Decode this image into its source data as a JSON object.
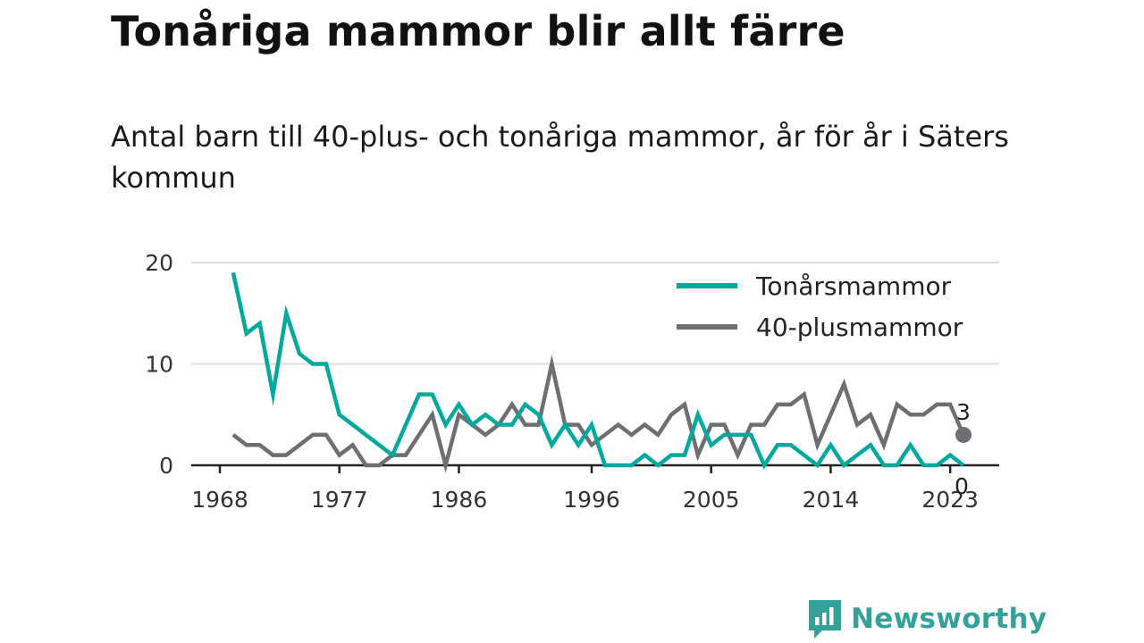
{
  "header": {
    "title": "Tonåriga mammor blir allt färre",
    "subtitle": "Antal barn till 40-plus- och tonåriga mammor, år för år i Säters kommun"
  },
  "brand": {
    "name": "Newsworthy",
    "icon": "bar-chart-speech-bubble-icon",
    "color": "#33a29a"
  },
  "chart_data": {
    "type": "line",
    "x": [
      1969,
      1970,
      1971,
      1972,
      1973,
      1974,
      1975,
      1976,
      1977,
      1978,
      1979,
      1980,
      1981,
      1982,
      1983,
      1984,
      1985,
      1986,
      1987,
      1988,
      1989,
      1990,
      1991,
      1992,
      1993,
      1994,
      1995,
      1996,
      1997,
      1998,
      1999,
      2000,
      2001,
      2002,
      2003,
      2004,
      2005,
      2006,
      2007,
      2008,
      2009,
      2010,
      2011,
      2012,
      2013,
      2014,
      2015,
      2016,
      2017,
      2018,
      2019,
      2020,
      2021,
      2022,
      2023,
      2024
    ],
    "series": [
      {
        "name": "Tonårsmammor",
        "color": "#00a99d",
        "values": [
          19,
          13,
          14,
          7,
          15,
          11,
          10,
          10,
          5,
          4,
          3,
          2,
          1,
          4,
          7,
          7,
          4,
          6,
          4,
          5,
          4,
          4,
          6,
          5,
          2,
          4,
          2,
          4,
          0,
          0,
          0,
          1,
          0,
          1,
          1,
          5,
          2,
          3,
          3,
          3,
          0,
          2,
          2,
          1,
          0,
          2,
          0,
          1,
          2,
          0,
          0,
          2,
          0,
          0,
          1,
          0
        ]
      },
      {
        "name": "40-plusmammor",
        "color": "#6e6e73",
        "values": [
          3,
          2,
          2,
          1,
          1,
          2,
          3,
          3,
          1,
          2,
          0,
          0,
          1,
          1,
          3,
          5,
          0,
          5,
          4,
          3,
          4,
          6,
          4,
          4,
          10,
          4,
          4,
          2,
          3,
          4,
          3,
          4,
          3,
          5,
          6,
          1,
          4,
          4,
          1,
          4,
          4,
          6,
          6,
          7,
          2,
          5,
          8,
          4,
          5,
          2,
          6,
          5,
          5,
          6,
          6,
          3
        ]
      }
    ],
    "x_ticks": [
      1968,
      1977,
      1986,
      1996,
      2005,
      2014,
      2023
    ],
    "y_ticks": [
      0,
      10,
      20
    ],
    "xlim": [
      1968,
      2024
    ],
    "ylim": [
      0,
      20
    ],
    "grid": "horizontal",
    "legend": "top-right",
    "end_labels": [
      {
        "series": "40-plusmammor",
        "text": "3"
      },
      {
        "series": "Tonårsmammor",
        "text": "0"
      }
    ]
  }
}
